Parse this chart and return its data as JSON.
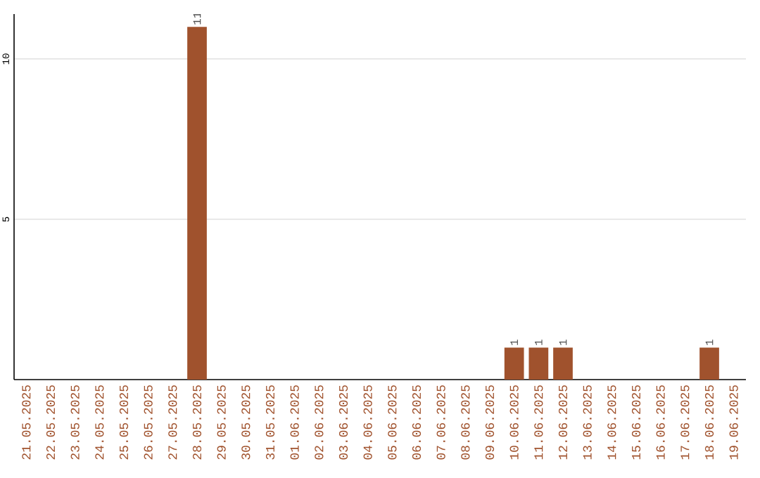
{
  "chart_data": {
    "type": "bar",
    "categories": [
      "21.05.2025",
      "22.05.2025",
      "23.05.2025",
      "24.05.2025",
      "25.05.2025",
      "26.05.2025",
      "27.05.2025",
      "28.05.2025",
      "29.05.2025",
      "30.05.2025",
      "31.05.2025",
      "01.06.2025",
      "02.06.2025",
      "03.06.2025",
      "04.06.2025",
      "05.06.2025",
      "06.06.2025",
      "07.06.2025",
      "08.06.2025",
      "09.06.2025",
      "10.06.2025",
      "11.06.2025",
      "12.06.2025",
      "13.06.2025",
      "14.06.2025",
      "15.06.2025",
      "16.06.2025",
      "17.06.2025",
      "18.06.2025",
      "19.06.2025"
    ],
    "values": [
      0,
      0,
      0,
      0,
      0,
      0,
      0,
      11,
      0,
      0,
      0,
      0,
      0,
      0,
      0,
      0,
      0,
      0,
      0,
      0,
      1,
      1,
      1,
      0,
      0,
      0,
      0,
      0,
      1,
      0
    ],
    "value_labels": [
      null,
      null,
      null,
      null,
      null,
      null,
      null,
      "11",
      null,
      null,
      null,
      null,
      null,
      null,
      null,
      null,
      null,
      null,
      null,
      null,
      "1",
      "1",
      "1",
      null,
      null,
      null,
      null,
      null,
      "1",
      null
    ],
    "color": "#a0522d",
    "ylim": [
      0,
      11.4
    ],
    "yticks": [
      5,
      10
    ],
    "grid": "y"
  }
}
